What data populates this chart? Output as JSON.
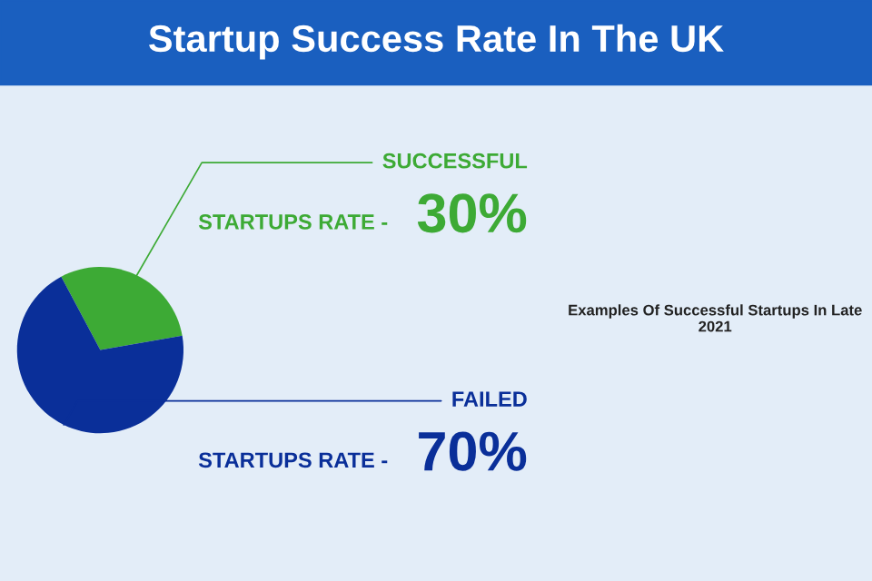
{
  "chart_data": {
    "type": "pie",
    "title": "Startup Success Rate In The UK",
    "categories": [
      "SUCCESSFUL",
      "FAILED"
    ],
    "values": [
      30,
      70
    ],
    "colors": [
      "#3daa35",
      "#0a2f99"
    ],
    "value_labels": [
      "30%",
      "70%"
    ],
    "annotations": [
      "STARTUPS RATE -",
      "STARTUPS RATE -",
      "Examples Of Successful Startups In Late 2021"
    ],
    "legend": false
  }
}
